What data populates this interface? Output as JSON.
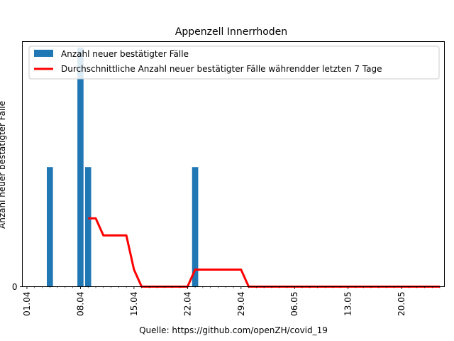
{
  "chart_data": {
    "type": "bar",
    "title": "Appenzell Innerrhoden",
    "xlabel": "Quelle: https://github.com/openZH/covid_19",
    "ylabel": "Anzahl neuer bestätigter Fälle",
    "x_tick_labels": [
      "01.04",
      "08.04",
      "15.04",
      "22.04",
      "29.04",
      "06.05",
      "13.05",
      "20.05"
    ],
    "y_tick_labels": [
      "0"
    ],
    "xlim_days": [
      -0.6,
      54.6
    ],
    "ylim": [
      0,
      2.05
    ],
    "legend_position": "top-left",
    "grid": false,
    "bars": {
      "name": "Anzahl neuer bestätigter Fälle",
      "color": "#1f77b4",
      "points": [
        {
          "day": 3,
          "date": "04.04",
          "value": 1
        },
        {
          "day": 7,
          "date": "08.04",
          "value": 2
        },
        {
          "day": 8,
          "date": "09.04",
          "value": 1
        },
        {
          "day": 22,
          "date": "23.04",
          "value": 1
        }
      ]
    },
    "line": {
      "name": "Durchschnittliche Anzahl neuer bestätigter Fälle währendder letzten 7 Tage",
      "color": "#ff0000",
      "points": [
        {
          "day": 8,
          "value": 0.5714
        },
        {
          "day": 9,
          "value": 0.5714
        },
        {
          "day": 10,
          "value": 0.4286
        },
        {
          "day": 11,
          "value": 0.4286
        },
        {
          "day": 12,
          "value": 0.4286
        },
        {
          "day": 13,
          "value": 0.4286
        },
        {
          "day": 14,
          "value": 0.1429
        },
        {
          "day": 15,
          "value": 0
        },
        {
          "day": 21,
          "value": 0
        },
        {
          "day": 22,
          "value": 0.1429
        },
        {
          "day": 28,
          "value": 0.1429
        },
        {
          "day": 29,
          "value": 0
        },
        {
          "day": 54,
          "value": 0
        }
      ]
    }
  }
}
